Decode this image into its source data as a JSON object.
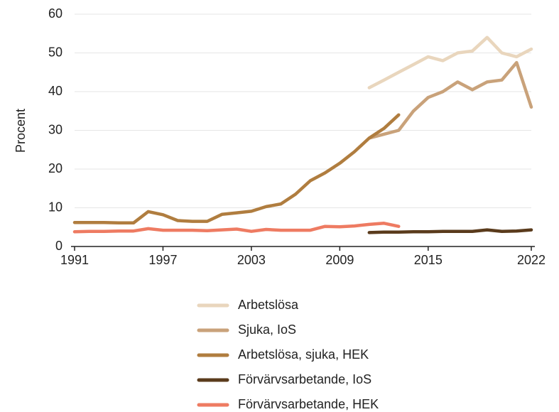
{
  "chart_data": {
    "type": "line",
    "ylabel": "Procent",
    "xlim": [
      1991,
      2022
    ],
    "xticks": [
      1991,
      1997,
      2003,
      2009,
      2015,
      2022
    ],
    "ylim": [
      0,
      60
    ],
    "yticks": [
      0,
      10,
      20,
      30,
      40,
      50,
      60
    ],
    "grid": true,
    "legend": "bottom",
    "series": [
      {
        "name": "Arbetslösa",
        "color": "#e9d6bd",
        "x": [
          2011,
          2012,
          2013,
          2014,
          2015,
          2016,
          2017,
          2018,
          2019,
          2020,
          2021,
          2022
        ],
        "values": [
          41,
          43,
          45,
          47,
          49,
          48,
          50,
          50.5,
          54,
          50,
          49,
          51
        ]
      },
      {
        "name": "Sjuka, IoS",
        "color": "#c9a27a",
        "x": [
          2011,
          2012,
          2013,
          2014,
          2015,
          2016,
          2017,
          2018,
          2019,
          2020,
          2021,
          2022
        ],
        "values": [
          28,
          29,
          30,
          35,
          38.5,
          40,
          42.5,
          40.5,
          42.5,
          43,
          47.5,
          36
        ]
      },
      {
        "name": "Arbetslösa, sjuka, HEK",
        "color": "#b07d3f",
        "x": [
          1991,
          1992,
          1993,
          1994,
          1995,
          1996,
          1997,
          1998,
          1999,
          2000,
          2001,
          2002,
          2003,
          2004,
          2005,
          2006,
          2007,
          2008,
          2009,
          2010,
          2011,
          2012,
          2013
        ],
        "values": [
          6.2,
          6.2,
          6.2,
          6.1,
          6.1,
          9,
          8.2,
          6.7,
          6.5,
          6.5,
          8.3,
          8.7,
          9.1,
          10.3,
          11,
          13.5,
          17,
          19,
          21.5,
          24.5,
          28,
          30.5,
          34
        ]
      },
      {
        "name": "Förvärvsarbetande, IoS",
        "color": "#5a3b1c",
        "x": [
          2011,
          2012,
          2013,
          2014,
          2015,
          2016,
          2017,
          2018,
          2019,
          2020,
          2021,
          2022
        ],
        "values": [
          3.6,
          3.7,
          3.7,
          3.8,
          3.8,
          3.9,
          3.9,
          3.9,
          4.3,
          3.9,
          4.0,
          4.3
        ]
      },
      {
        "name": "Förvärvsarbetande, HEK",
        "color": "#ee7b62",
        "x": [
          1991,
          1992,
          1993,
          1994,
          1995,
          1996,
          1997,
          1998,
          1999,
          2000,
          2001,
          2002,
          2003,
          2004,
          2005,
          2006,
          2007,
          2008,
          2009,
          2010,
          2011,
          2012,
          2013
        ],
        "values": [
          3.8,
          3.9,
          3.9,
          4.0,
          4.0,
          4.6,
          4.2,
          4.2,
          4.2,
          4.1,
          4.3,
          4.5,
          3.9,
          4.4,
          4.2,
          4.2,
          4.2,
          5.2,
          5.1,
          5.3,
          5.7,
          6.0,
          5.2
        ]
      }
    ]
  }
}
